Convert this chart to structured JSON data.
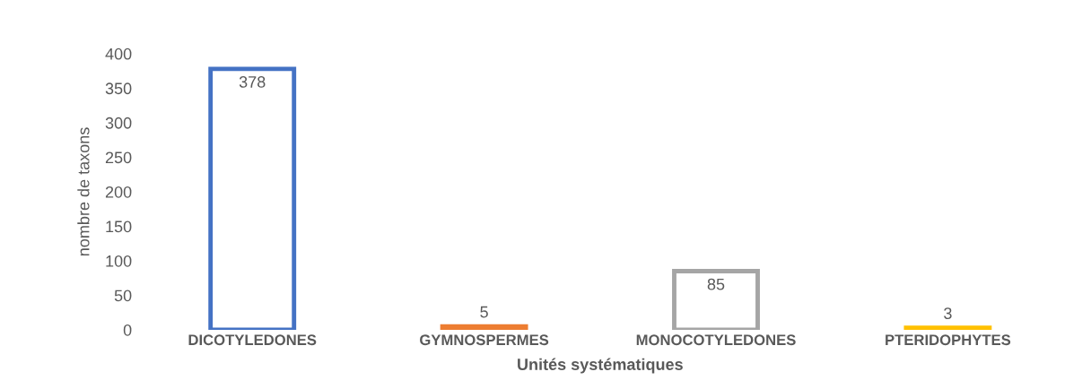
{
  "chart_data": {
    "type": "bar",
    "xlabel": "Unités systématiques",
    "ylabel": "nombre de taxons",
    "categories": [
      "DICOTYLEDONES",
      "GYMNOSPERMES",
      "MONOCOTYLEDONES",
      "PTERIDOPHYTES"
    ],
    "values": [
      378,
      5,
      85,
      3
    ],
    "colors": [
      "#4472c4",
      "#ed7d31",
      "#a5a5a5",
      "#ffc000"
    ],
    "ylim": [
      0,
      400
    ],
    "yticks": [
      0,
      50,
      100,
      150,
      200,
      250,
      300,
      350,
      400
    ],
    "data_labels": true,
    "grid": false,
    "legend": false
  }
}
